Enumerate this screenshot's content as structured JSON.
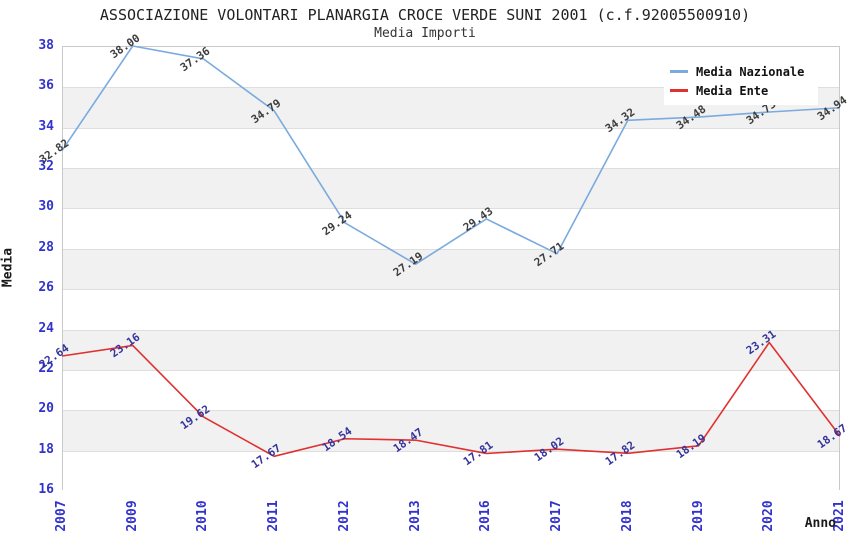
{
  "chart_data": {
    "type": "line",
    "title": "ASSOCIAZIONE VOLONTARI PLANARGIA CROCE VERDE SUNI 2001 (c.f.92005500910)",
    "subtitle": "Media Importi",
    "xlabel": "Anno",
    "ylabel": "Media",
    "ylim": [
      16,
      38
    ],
    "ytick_step": 2,
    "grid": "horizontal-bands",
    "legend_position": "top-right",
    "categories": [
      "2007",
      "2009",
      "2010",
      "2011",
      "2012",
      "2013",
      "2016",
      "2017",
      "2018",
      "2019",
      "2020",
      "2021"
    ],
    "series": [
      {
        "name": "Media Nazionale",
        "color": "#7aaade",
        "label_color": "#3d3d3d",
        "values": [
          32.82,
          38.0,
          37.36,
          34.79,
          29.24,
          27.19,
          29.43,
          27.71,
          34.32,
          34.48,
          34.73,
          34.94
        ]
      },
      {
        "name": "Media Ente",
        "color": "#e03030",
        "label_color": "#34349b",
        "values": [
          22.64,
          23.16,
          19.62,
          17.67,
          18.54,
          18.47,
          17.81,
          18.02,
          17.82,
          18.19,
          23.31,
          18.67
        ]
      }
    ],
    "colors": {
      "axis_tick": "#3232cd",
      "band": "#f1f1f1",
      "gridline": "#dedede",
      "plot_border": "#c9c9c9",
      "background": "#ffffff",
      "title_text": "#222222"
    }
  }
}
